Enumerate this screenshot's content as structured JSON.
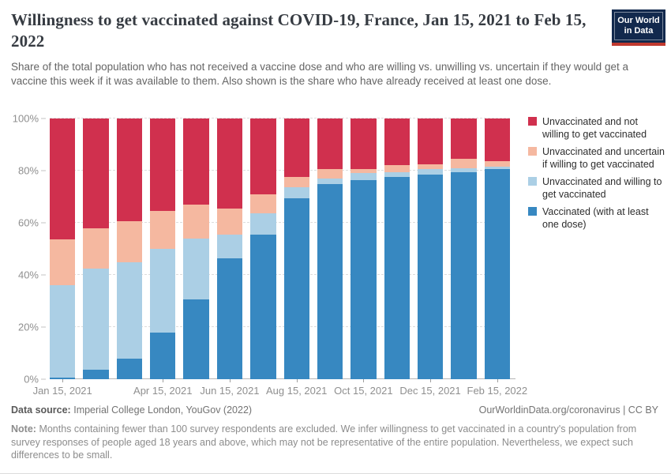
{
  "header": {
    "title": "Willingness to get vaccinated against COVID-19, France, Jan 15, 2021 to Feb 15, 2022",
    "subtitle": "Share of the total population who has not received a vaccine dose and who are willing vs. unwilling vs. uncertain if they would get a vaccine this week if it was available to them. Also shown is the share who have already received at least one dose.",
    "logo": {
      "line1": "Our World",
      "line2": "in Data",
      "bg_color": "#12294d",
      "stripe_color": "#c0392f"
    }
  },
  "chart_data": {
    "type": "bar",
    "stacked": true,
    "unit": "%",
    "title": "Willingness to get vaccinated against COVID-19, France, Jan 15, 2021 to Feb 15, 2022",
    "categories": [
      "Jan 15, 2021",
      "Feb 15, 2021",
      "Mar 15, 2021",
      "Apr 15, 2021",
      "May 15, 2021",
      "Jun 15, 2021",
      "Jul 15, 2021",
      "Aug 15, 2021",
      "Sep 15, 2021",
      "Oct 15, 2021",
      "Nov 15, 2021",
      "Dec 15, 2021",
      "Jan 15, 2022",
      "Feb 15, 2022"
    ],
    "series": [
      {
        "name": "Vaccinated (with at least one dose)",
        "color": "#3788c1",
        "values": [
          0.7,
          3.5,
          8,
          18,
          30.5,
          46.5,
          55.5,
          69.5,
          75,
          76.5,
          77.5,
          78.5,
          79.5,
          80.5
        ]
      },
      {
        "name": "Unvaccinated and willing to get vaccinated",
        "color": "#abcfe5",
        "values": [
          35.3,
          39,
          37,
          32,
          23.5,
          9,
          8,
          4,
          2,
          2.5,
          2,
          2,
          1.5,
          1
        ]
      },
      {
        "name": "Unvaccinated and uncertain if willing to get vaccinated",
        "color": "#f5b8a0",
        "values": [
          17.5,
          15.5,
          15.5,
          14.5,
          13,
          10,
          7.5,
          4,
          3.5,
          1.5,
          2.5,
          2,
          3.5,
          2
        ]
      },
      {
        "name": "Unvaccinated and not willing to get vaccinated",
        "color": "#d0304e",
        "values": [
          46.5,
          42,
          39.5,
          35.5,
          33,
          34.5,
          29,
          22.5,
          19.5,
          19.5,
          18,
          17.5,
          15.5,
          16.5
        ]
      }
    ],
    "ylim": [
      0,
      100
    ],
    "y_ticks": [
      "0%",
      "20%",
      "40%",
      "60%",
      "80%",
      "100%"
    ],
    "x_ticks": [
      {
        "index": 0,
        "label": "Jan 15, 2021"
      },
      {
        "index": 3,
        "label": "Apr 15, 2021"
      },
      {
        "index": 5,
        "label": "Jun 15, 2021"
      },
      {
        "index": 7,
        "label": "Aug 15, 2021"
      },
      {
        "index": 9,
        "label": "Oct 15, 2021"
      },
      {
        "index": 11,
        "label": "Dec 15, 2021"
      },
      {
        "index": 13,
        "label": "Feb 15, 2022"
      }
    ],
    "grid": true,
    "gridline_style": "dashed",
    "legend_position": "right"
  },
  "footer": {
    "source_label": "Data source:",
    "source_text": "Imperial College London, YouGov (2022)",
    "link_text": "OurWorldinData.org/coronavirus | CC BY",
    "note_label": "Note:",
    "note_text": "Months containing fewer than 100 survey respondents are excluded. We infer willingness to get vaccinated in a country's population from survey responses of people aged 18 years and above, which may not be representative of the entire population. Nevertheless, we expect such differences to be small."
  }
}
